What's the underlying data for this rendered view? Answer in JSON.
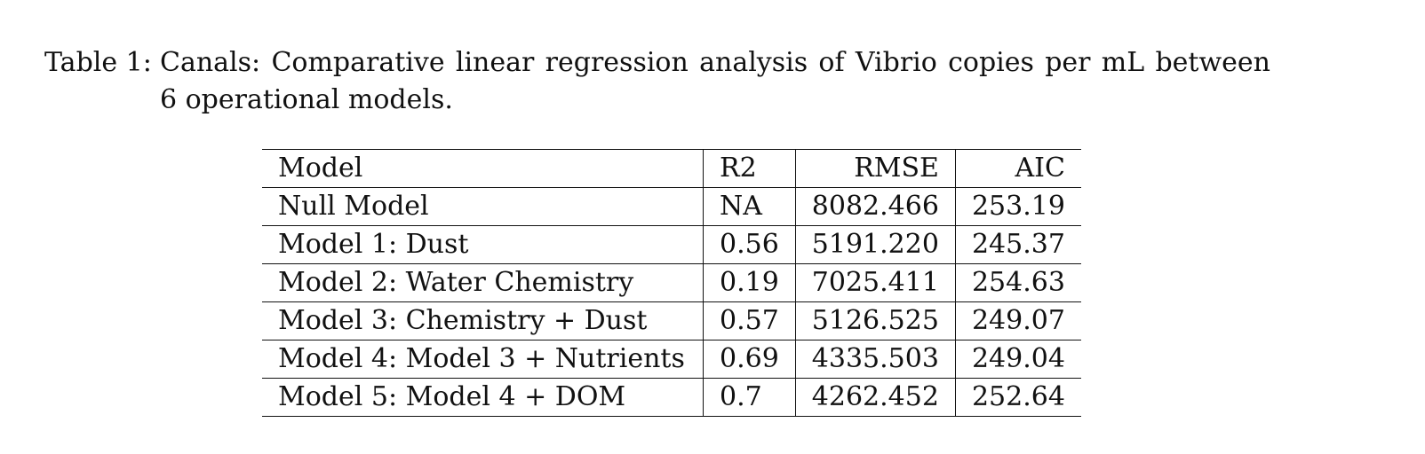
{
  "caption": {
    "label": "Table 1:",
    "text": "Canals: Comparative linear regression analysis of Vibrio copies per mL between 6 operational models."
  },
  "table": {
    "headers": [
      "Model",
      "R2",
      "RMSE",
      "AIC"
    ],
    "rows": [
      [
        "Null Model",
        "NA",
        "8082.466",
        "253.19"
      ],
      [
        "Model 1: Dust",
        "0.56",
        "5191.220",
        "245.37"
      ],
      [
        "Model 2: Water Chemistry",
        "0.19",
        "7025.411",
        "254.63"
      ],
      [
        "Model 3: Chemistry + Dust",
        "0.57",
        "5126.525",
        "249.07"
      ],
      [
        "Model 4: Model 3 + Nutrients",
        "0.69",
        "4335.503",
        "249.04"
      ],
      [
        "Model 5: Model 4 + DOM",
        "0.7",
        "4262.452",
        "252.64"
      ]
    ]
  }
}
